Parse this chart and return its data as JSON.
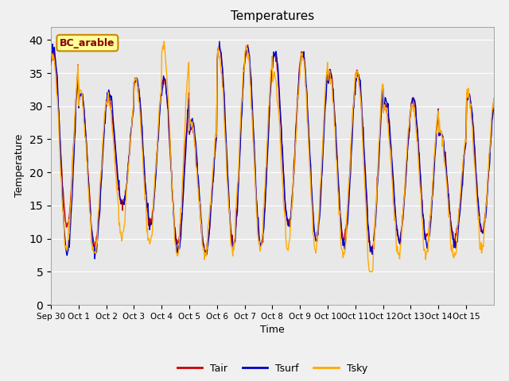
{
  "title": "Temperatures",
  "xlabel": "Time",
  "ylabel": "Temperature",
  "ylim": [
    0,
    42
  ],
  "yticks": [
    0,
    5,
    10,
    15,
    20,
    25,
    30,
    35,
    40
  ],
  "bg_color": "#e8e8e8",
  "fig_color": "#f0f0f0",
  "tair_color": "#cc0000",
  "tsurf_color": "#0000cc",
  "tsky_color": "#ffaa00",
  "legend_labels": [
    "Tair",
    "Tsurf",
    "Tsky"
  ],
  "annotation_text": "BC_arable",
  "annotation_bg": "#ffff99",
  "annotation_border": "#cc8800",
  "n_days": 16,
  "pts_per_day": 48,
  "daily_min_tair": [
    12,
    9,
    15,
    12,
    9,
    8,
    9,
    9,
    12,
    10,
    10,
    8,
    10,
    10,
    10,
    11
  ],
  "daily_max_tair": [
    38,
    32,
    31,
    34,
    34,
    27,
    39,
    39,
    38,
    38,
    35,
    35,
    30,
    31,
    26,
    32
  ],
  "daily_min_tsurf": [
    8,
    8,
    15,
    12,
    8,
    8,
    9,
    9,
    12,
    10,
    9,
    8,
    10,
    9,
    9,
    11
  ],
  "daily_max_tsurf": [
    39,
    32,
    32,
    34,
    34,
    28,
    39,
    39,
    38,
    38,
    35,
    35,
    31,
    31,
    26,
    32
  ],
  "daily_min_tsky": [
    10,
    9,
    12,
    11,
    9,
    9,
    10,
    10,
    10,
    10,
    9,
    6,
    9,
    9,
    9,
    10
  ],
  "daily_max_tsky": [
    38,
    32,
    31,
    34,
    39,
    27,
    38,
    39,
    35,
    38,
    35,
    35,
    30,
    30,
    26,
    32
  ],
  "xtick_labels": [
    "Sep 30",
    "Oct 1",
    "Oct 2",
    "Oct 3",
    "Oct 4",
    "Oct 5",
    "Oct 6",
    "Oct 7",
    "Oct 8",
    "Oct 9",
    "Oct 10",
    "Oct 11",
    "Oct 12",
    "Oct 13",
    "Oct 14",
    "Oct 15"
  ],
  "line_width": 1.0
}
